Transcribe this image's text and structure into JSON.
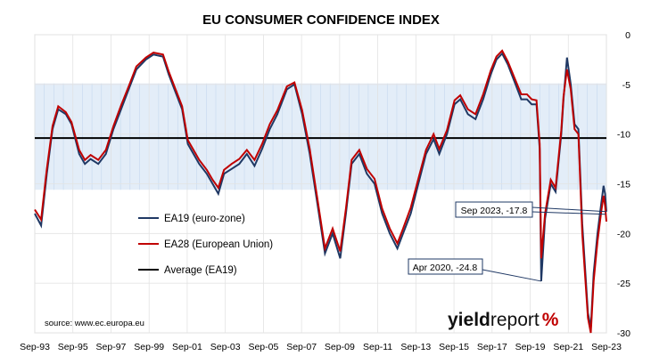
{
  "chart_data": {
    "type": "line",
    "title": "EU CONSUMER CONFIDENCE INDEX",
    "x_tick_labels": [
      "Sep-93",
      "Sep-95",
      "Sep-97",
      "Sep-99",
      "Sep-01",
      "Sep-03",
      "Sep-05",
      "Sep-07",
      "Sep-09",
      "Sep-11",
      "Sep-13",
      "Sep-15",
      "Sep-17",
      "Sep-19",
      "Sep-21",
      "Sep-23"
    ],
    "x_range": [
      "Sep-93",
      "Sep-23"
    ],
    "y_ticks": [
      0,
      -5,
      -10,
      -15,
      -20,
      -25,
      -30
    ],
    "ylim": [
      -30,
      0
    ],
    "y_axis_side": "right",
    "band": {
      "from": -4.9,
      "to": -15.6,
      "color": "#bcd3ec"
    },
    "average": {
      "name": "Average (EA19)",
      "value": -10.4,
      "color": "#000000"
    },
    "series": [
      {
        "name": "EA19 (euro-zone)",
        "color": "#1f3864",
        "points": [
          [
            1993.67,
            -18
          ],
          [
            1994.0,
            -19.2
          ],
          [
            1994.3,
            -14
          ],
          [
            1994.6,
            -9.5
          ],
          [
            1994.9,
            -7.5
          ],
          [
            1995.3,
            -8
          ],
          [
            1995.6,
            -9
          ],
          [
            1996.0,
            -12
          ],
          [
            1996.3,
            -13
          ],
          [
            1996.6,
            -12.5
          ],
          [
            1997.0,
            -13
          ],
          [
            1997.4,
            -12
          ],
          [
            1997.8,
            -9.5
          ],
          [
            1998.2,
            -7.5
          ],
          [
            1998.6,
            -5.5
          ],
          [
            1999.0,
            -3.5
          ],
          [
            1999.5,
            -2.5
          ],
          [
            1999.9,
            -2
          ],
          [
            2000.4,
            -2.2
          ],
          [
            2000.7,
            -4
          ],
          [
            2001.0,
            -5.5
          ],
          [
            2001.4,
            -7.5
          ],
          [
            2001.7,
            -11
          ],
          [
            2002.0,
            -12
          ],
          [
            2002.3,
            -13
          ],
          [
            2002.7,
            -14
          ],
          [
            2003.0,
            -15
          ],
          [
            2003.3,
            -16
          ],
          [
            2003.6,
            -14
          ],
          [
            2004.0,
            -13.5
          ],
          [
            2004.4,
            -13
          ],
          [
            2004.8,
            -12
          ],
          [
            2005.2,
            -13.2
          ],
          [
            2005.6,
            -11.5
          ],
          [
            2006.0,
            -9.5
          ],
          [
            2006.4,
            -8
          ],
          [
            2006.9,
            -5.5
          ],
          [
            2007.3,
            -5
          ],
          [
            2007.7,
            -8
          ],
          [
            2008.1,
            -12
          ],
          [
            2008.5,
            -17
          ],
          [
            2008.9,
            -22
          ],
          [
            2009.3,
            -20
          ],
          [
            2009.7,
            -22.5
          ],
          [
            2010.0,
            -18
          ],
          [
            2010.3,
            -13
          ],
          [
            2010.7,
            -12
          ],
          [
            2011.1,
            -14
          ],
          [
            2011.5,
            -15
          ],
          [
            2011.9,
            -18
          ],
          [
            2012.3,
            -20
          ],
          [
            2012.7,
            -21.5
          ],
          [
            2013.0,
            -20
          ],
          [
            2013.4,
            -18
          ],
          [
            2013.8,
            -15
          ],
          [
            2014.2,
            -12
          ],
          [
            2014.6,
            -10.5
          ],
          [
            2014.9,
            -12
          ],
          [
            2015.3,
            -10
          ],
          [
            2015.7,
            -7
          ],
          [
            2016.0,
            -6.5
          ],
          [
            2016.4,
            -8
          ],
          [
            2016.8,
            -8.5
          ],
          [
            2017.2,
            -6.5
          ],
          [
            2017.6,
            -4
          ],
          [
            2017.9,
            -2.5
          ],
          [
            2018.2,
            -1.9
          ],
          [
            2018.5,
            -3
          ],
          [
            2018.9,
            -5
          ],
          [
            2019.2,
            -6.5
          ],
          [
            2019.5,
            -6.5
          ],
          [
            2019.75,
            -7
          ],
          [
            2020.0,
            -7
          ],
          [
            2020.17,
            -11.5
          ],
          [
            2020.25,
            -24.8
          ],
          [
            2020.45,
            -18.5
          ],
          [
            2020.75,
            -15
          ],
          [
            2021.0,
            -15.8
          ],
          [
            2021.3,
            -10
          ],
          [
            2021.42,
            -6.5
          ],
          [
            2021.6,
            -2.3
          ],
          [
            2021.8,
            -5
          ],
          [
            2022.0,
            -9
          ],
          [
            2022.2,
            -9.5
          ],
          [
            2022.4,
            -19
          ],
          [
            2022.7,
            -28
          ],
          [
            2022.85,
            -29.5
          ],
          [
            2023.0,
            -24
          ],
          [
            2023.2,
            -20
          ],
          [
            2023.4,
            -17
          ],
          [
            2023.52,
            -15.2
          ],
          [
            2023.6,
            -16
          ],
          [
            2023.67,
            -17.8
          ]
        ]
      },
      {
        "name": "EA28 (European Union)",
        "color": "#c00000",
        "points": [
          [
            1993.67,
            -17.6
          ],
          [
            1994.0,
            -18.6
          ],
          [
            1994.3,
            -13.5
          ],
          [
            1994.6,
            -9.2
          ],
          [
            1994.9,
            -7.2
          ],
          [
            1995.3,
            -7.8
          ],
          [
            1995.6,
            -8.8
          ],
          [
            1996.0,
            -11.6
          ],
          [
            1996.3,
            -12.6
          ],
          [
            1996.6,
            -12.1
          ],
          [
            1997.0,
            -12.6
          ],
          [
            1997.4,
            -11.6
          ],
          [
            1997.8,
            -9.2
          ],
          [
            1998.2,
            -7.1
          ],
          [
            1998.6,
            -5.2
          ],
          [
            1999.0,
            -3.2
          ],
          [
            1999.5,
            -2.3
          ],
          [
            1999.9,
            -1.8
          ],
          [
            2000.4,
            -2
          ],
          [
            2000.7,
            -3.7
          ],
          [
            2001.0,
            -5.2
          ],
          [
            2001.4,
            -7.2
          ],
          [
            2001.7,
            -10.6
          ],
          [
            2002.0,
            -11.6
          ],
          [
            2002.3,
            -12.6
          ],
          [
            2002.7,
            -13.6
          ],
          [
            2003.0,
            -14.6
          ],
          [
            2003.3,
            -15.4
          ],
          [
            2003.6,
            -13.6
          ],
          [
            2004.0,
            -13
          ],
          [
            2004.4,
            -12.5
          ],
          [
            2004.8,
            -11.6
          ],
          [
            2005.2,
            -12.6
          ],
          [
            2005.6,
            -11
          ],
          [
            2006.0,
            -9
          ],
          [
            2006.4,
            -7.6
          ],
          [
            2006.9,
            -5.2
          ],
          [
            2007.3,
            -4.8
          ],
          [
            2007.7,
            -7.6
          ],
          [
            2008.1,
            -11.5
          ],
          [
            2008.5,
            -16.5
          ],
          [
            2008.9,
            -21.5
          ],
          [
            2009.3,
            -19.5
          ],
          [
            2009.7,
            -21.8
          ],
          [
            2010.0,
            -17.5
          ],
          [
            2010.3,
            -12.6
          ],
          [
            2010.7,
            -11.6
          ],
          [
            2011.1,
            -13.5
          ],
          [
            2011.5,
            -14.5
          ],
          [
            2011.9,
            -17.5
          ],
          [
            2012.3,
            -19.5
          ],
          [
            2012.7,
            -21
          ],
          [
            2013.0,
            -19.5
          ],
          [
            2013.4,
            -17.4
          ],
          [
            2013.8,
            -14.5
          ],
          [
            2014.2,
            -11.6
          ],
          [
            2014.6,
            -10
          ],
          [
            2014.9,
            -11.5
          ],
          [
            2015.3,
            -9.6
          ],
          [
            2015.7,
            -6.6
          ],
          [
            2016.0,
            -6.1
          ],
          [
            2016.4,
            -7.5
          ],
          [
            2016.8,
            -8
          ],
          [
            2017.2,
            -6
          ],
          [
            2017.6,
            -3.6
          ],
          [
            2017.9,
            -2.2
          ],
          [
            2018.2,
            -1.6
          ],
          [
            2018.5,
            -2.7
          ],
          [
            2018.9,
            -4.6
          ],
          [
            2019.2,
            -6
          ],
          [
            2019.5,
            -6
          ],
          [
            2019.75,
            -6.5
          ],
          [
            2020.0,
            -6.6
          ],
          [
            2020.17,
            -11
          ],
          [
            2020.25,
            -22.5
          ],
          [
            2020.45,
            -18
          ],
          [
            2020.75,
            -14.6
          ],
          [
            2021.0,
            -15.4
          ],
          [
            2021.3,
            -9.6
          ],
          [
            2021.42,
            -6.2
          ],
          [
            2021.6,
            -3.5
          ],
          [
            2021.8,
            -5.5
          ],
          [
            2022.0,
            -9.5
          ],
          [
            2022.2,
            -10
          ],
          [
            2022.4,
            -20
          ],
          [
            2022.7,
            -28.5
          ],
          [
            2022.85,
            -30
          ],
          [
            2023.0,
            -24.8
          ],
          [
            2023.2,
            -20.8
          ],
          [
            2023.4,
            -17.8
          ],
          [
            2023.52,
            -16.2
          ],
          [
            2023.6,
            -17.2
          ],
          [
            2023.67,
            -18.8
          ]
        ]
      }
    ],
    "annotations": [
      {
        "text": "Sep 2023, -17.8",
        "x": 2023.67,
        "y": -17.8
      },
      {
        "text": "Apr 2020, -24.8",
        "x": 2020.25,
        "y": -24.8
      }
    ],
    "legend_placement": "left-middle",
    "source": "source: www.ec.europa.eu",
    "grid": {
      "horizontal": true,
      "vertical": true
    }
  },
  "branding": {
    "logo_text_bold": "yield",
    "logo_text_light": "report",
    "logo_symbol": "%"
  }
}
